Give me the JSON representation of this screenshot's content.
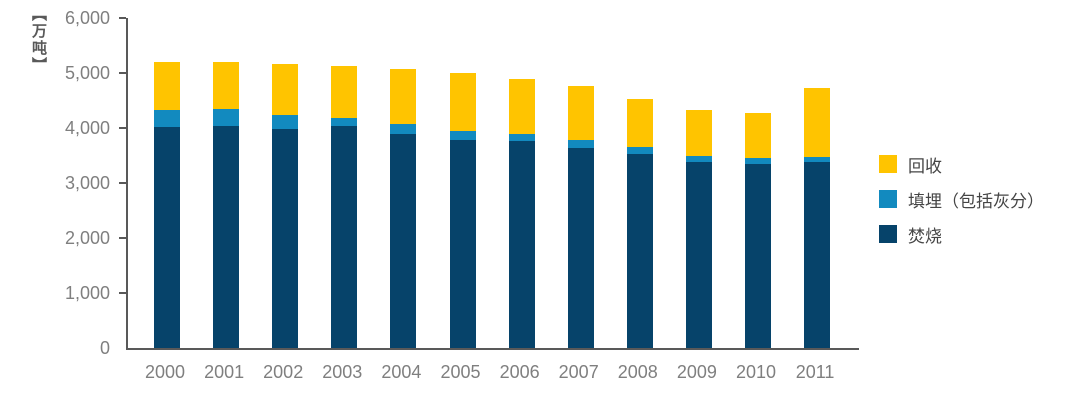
{
  "chart_data": {
    "type": "bar",
    "stacked": true,
    "unit_label": "【万吨】",
    "categories": [
      "2000",
      "2001",
      "2002",
      "2003",
      "2004",
      "2005",
      "2006",
      "2007",
      "2008",
      "2009",
      "2010",
      "2011"
    ],
    "series": [
      {
        "key": "incineration",
        "name": "焚烧",
        "color": "#06436A",
        "values": [
          4010,
          4040,
          3990,
          4030,
          3890,
          3790,
          3760,
          3640,
          3520,
          3390,
          3350,
          3380
        ]
      },
      {
        "key": "landfill",
        "name": "填埋（包括灰分）",
        "color": "#128ABF",
        "values": [
          310,
          300,
          240,
          160,
          180,
          150,
          140,
          140,
          130,
          110,
          100,
          100
        ]
      },
      {
        "key": "recycling",
        "name": "回收",
        "color": "#FFC400",
        "values": [
          880,
          860,
          930,
          940,
          1000,
          1060,
          990,
          980,
          880,
          820,
          820,
          1250
        ]
      }
    ],
    "totals": [
      5200,
      5200,
      5160,
      5130,
      5070,
      5000,
      4890,
      4760,
      4530,
      4320,
      4270,
      4730
    ],
    "ylim": [
      0,
      6000
    ],
    "ytick_step": 1000,
    "ytick_labels": [
      "0",
      "1,000",
      "2,000",
      "3,000",
      "4,000",
      "5,000",
      "6,000"
    ],
    "grid": false,
    "legend": {
      "position": "right",
      "items": [
        {
          "key": "recycling",
          "label": "回收",
          "color": "#FFC400"
        },
        {
          "key": "landfill",
          "label": "填埋（包括灰分）",
          "color": "#128ABF"
        },
        {
          "key": "incineration",
          "label": "焚烧",
          "color": "#06436A"
        }
      ]
    },
    "axis_color": "#595959",
    "tick_label_color": "#7F7F7F"
  }
}
